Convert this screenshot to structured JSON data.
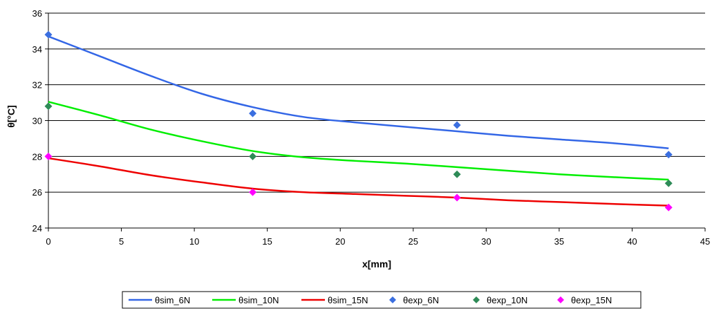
{
  "chart_data": {
    "type": "line",
    "title": "",
    "xlabel": "x[mm]",
    "ylabel": "θ[°C]",
    "xlim": [
      0,
      45
    ],
    "ylim": [
      24,
      36
    ],
    "xticks": [
      0,
      5,
      10,
      15,
      20,
      25,
      30,
      35,
      40,
      45
    ],
    "yticks": [
      24,
      26,
      28,
      30,
      32,
      34,
      36
    ],
    "xtick_labels": [
      "0",
      "5",
      "10",
      "15",
      "20",
      "25",
      "30",
      "35",
      "40",
      "45"
    ],
    "ytick_labels": [
      "24",
      "26",
      "28",
      "30",
      "32",
      "34",
      "36"
    ],
    "grid": "horizontal",
    "legend_position": "bottom",
    "series": [
      {
        "name": "θsim_6N",
        "kind": "line",
        "color": "#3366e6",
        "x": [
          0,
          3.5,
          7,
          10.5,
          14,
          17.5,
          21,
          24.5,
          28,
          31.5,
          35,
          38.5,
          42.5
        ],
        "y": [
          34.7,
          33.6,
          32.5,
          31.5,
          30.75,
          30.2,
          29.9,
          29.65,
          29.4,
          29.15,
          28.95,
          28.75,
          28.45
        ]
      },
      {
        "name": "θsim_10N",
        "kind": "line",
        "color": "#00ee00",
        "x": [
          0,
          3.5,
          7,
          10.5,
          14,
          17.5,
          21,
          24.5,
          28,
          31.5,
          35,
          38.5,
          42.5
        ],
        "y": [
          31.05,
          30.3,
          29.5,
          28.85,
          28.3,
          27.95,
          27.75,
          27.6,
          27.4,
          27.2,
          27.0,
          26.85,
          26.7
        ]
      },
      {
        "name": "θsim_15N",
        "kind": "line",
        "color": "#ee0000",
        "x": [
          0,
          3.5,
          7,
          10.5,
          14,
          17.5,
          21,
          24.5,
          28,
          31.5,
          35,
          38.5,
          42.5
        ],
        "y": [
          27.9,
          27.45,
          26.95,
          26.55,
          26.2,
          26.0,
          25.9,
          25.8,
          25.7,
          25.55,
          25.45,
          25.35,
          25.25
        ]
      },
      {
        "name": "θexp_6N",
        "kind": "scatter",
        "color": "#3b6fe0",
        "x": [
          0,
          14,
          28,
          42.5
        ],
        "y": [
          34.8,
          30.4,
          29.75,
          28.1
        ]
      },
      {
        "name": "θexp_10N",
        "kind": "scatter",
        "color": "#2e8b57",
        "x": [
          0,
          14,
          28,
          42.5
        ],
        "y": [
          30.8,
          28.0,
          27.0,
          26.5
        ]
      },
      {
        "name": "θexp_15N",
        "kind": "scatter",
        "color": "#ff00ff",
        "x": [
          0,
          14,
          28,
          42.5
        ],
        "y": [
          28.0,
          26.0,
          25.7,
          25.15
        ]
      }
    ]
  }
}
